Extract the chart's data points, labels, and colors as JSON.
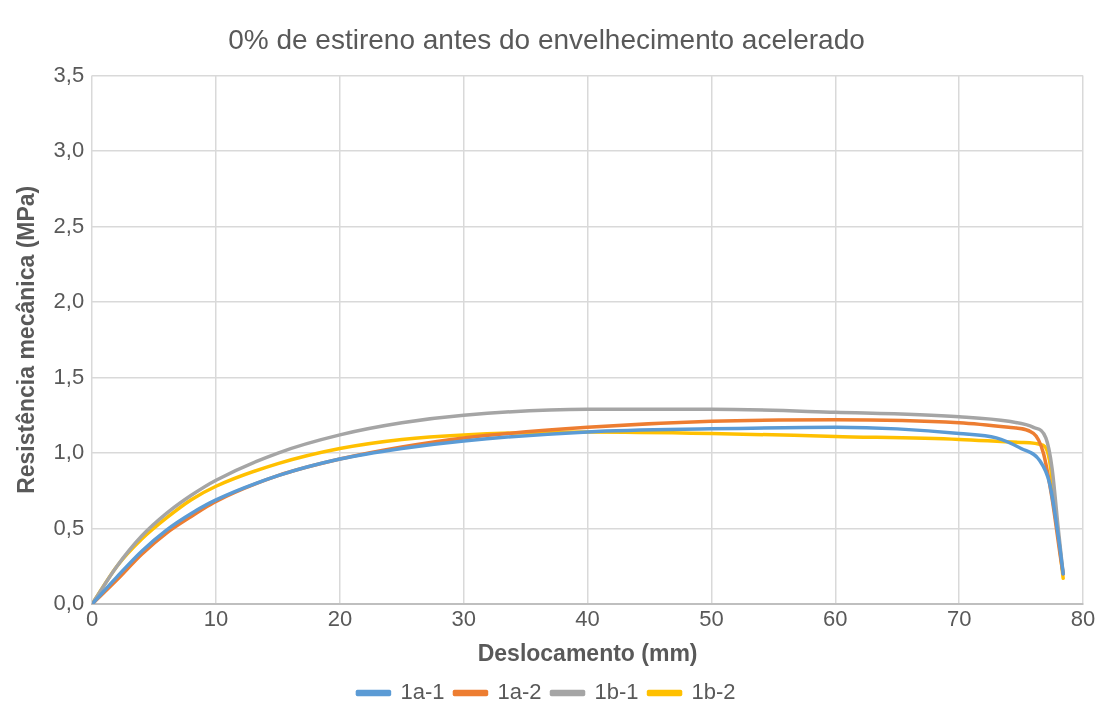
{
  "chart_data": {
    "type": "line",
    "title": "0% de estireno antes do envelhecimento acelerado",
    "xlabel": "Deslocamento (mm)",
    "ylabel": "Resistência mecânica (MPa)",
    "xlim": [
      0,
      80
    ],
    "xticks": [
      0,
      10,
      20,
      30,
      40,
      50,
      60,
      70,
      80
    ],
    "ylim": [
      0,
      3.5
    ],
    "yticks": [
      {
        "value": 0,
        "label": "0,0"
      },
      {
        "value": 0.5,
        "label": "0,5"
      },
      {
        "value": 1,
        "label": "1,0"
      },
      {
        "value": 1.5,
        "label": "1,5"
      },
      {
        "value": 2,
        "label": "2,0"
      },
      {
        "value": 2.5,
        "label": "2,5"
      },
      {
        "value": 3,
        "label": "3,0"
      },
      {
        "value": 3.5,
        "label": "3,5"
      }
    ],
    "grid": true,
    "legend": "bottom",
    "marker": "none",
    "line_style": "solid",
    "series": [
      {
        "name": "1a-1",
        "color": "#5b9bd5",
        "x": [
          0,
          2,
          4,
          6,
          8,
          10,
          15,
          20,
          25,
          30,
          40,
          50,
          60,
          65,
          70,
          73,
          75,
          76.5,
          77.3,
          78,
          78.4
        ],
        "values": [
          0,
          0.18,
          0.35,
          0.49,
          0.6,
          0.69,
          0.85,
          0.96,
          1.03,
          1.08,
          1.14,
          1.16,
          1.17,
          1.16,
          1.13,
          1.1,
          1.03,
          0.95,
          0.8,
          0.45,
          0.2
        ]
      },
      {
        "name": "1a-2",
        "color": "#ed7d31",
        "x": [
          0,
          2,
          4,
          6,
          8,
          10,
          15,
          20,
          25,
          30,
          40,
          50,
          60,
          70,
          74,
          76,
          76.8,
          77.5,
          78.2,
          78.4
        ],
        "values": [
          0,
          0.16,
          0.33,
          0.47,
          0.58,
          0.68,
          0.85,
          0.96,
          1.04,
          1.1,
          1.17,
          1.21,
          1.22,
          1.2,
          1.17,
          1.13,
          1.0,
          0.7,
          0.3,
          0.2
        ]
      },
      {
        "name": "1b-1",
        "color": "#a5a5a5",
        "x": [
          0,
          2,
          4,
          6,
          8,
          10,
          15,
          20,
          25,
          30,
          40,
          50,
          60,
          70,
          74,
          76,
          77,
          77.5,
          78,
          78.4
        ],
        "values": [
          0,
          0.25,
          0.45,
          0.6,
          0.72,
          0.82,
          1.0,
          1.12,
          1.2,
          1.25,
          1.29,
          1.29,
          1.27,
          1.24,
          1.21,
          1.17,
          1.1,
          0.9,
          0.5,
          0.2
        ]
      },
      {
        "name": "1b-2",
        "color": "#ffc000",
        "x": [
          0,
          2,
          4,
          6,
          8,
          10,
          15,
          20,
          25,
          30,
          40,
          50,
          60,
          70,
          75,
          76.8,
          77.3,
          77.8,
          78.4
        ],
        "values": [
          0,
          0.25,
          0.43,
          0.57,
          0.69,
          0.78,
          0.93,
          1.03,
          1.09,
          1.12,
          1.14,
          1.13,
          1.11,
          1.09,
          1.07,
          1.05,
          0.95,
          0.6,
          0.17
        ]
      }
    ]
  }
}
